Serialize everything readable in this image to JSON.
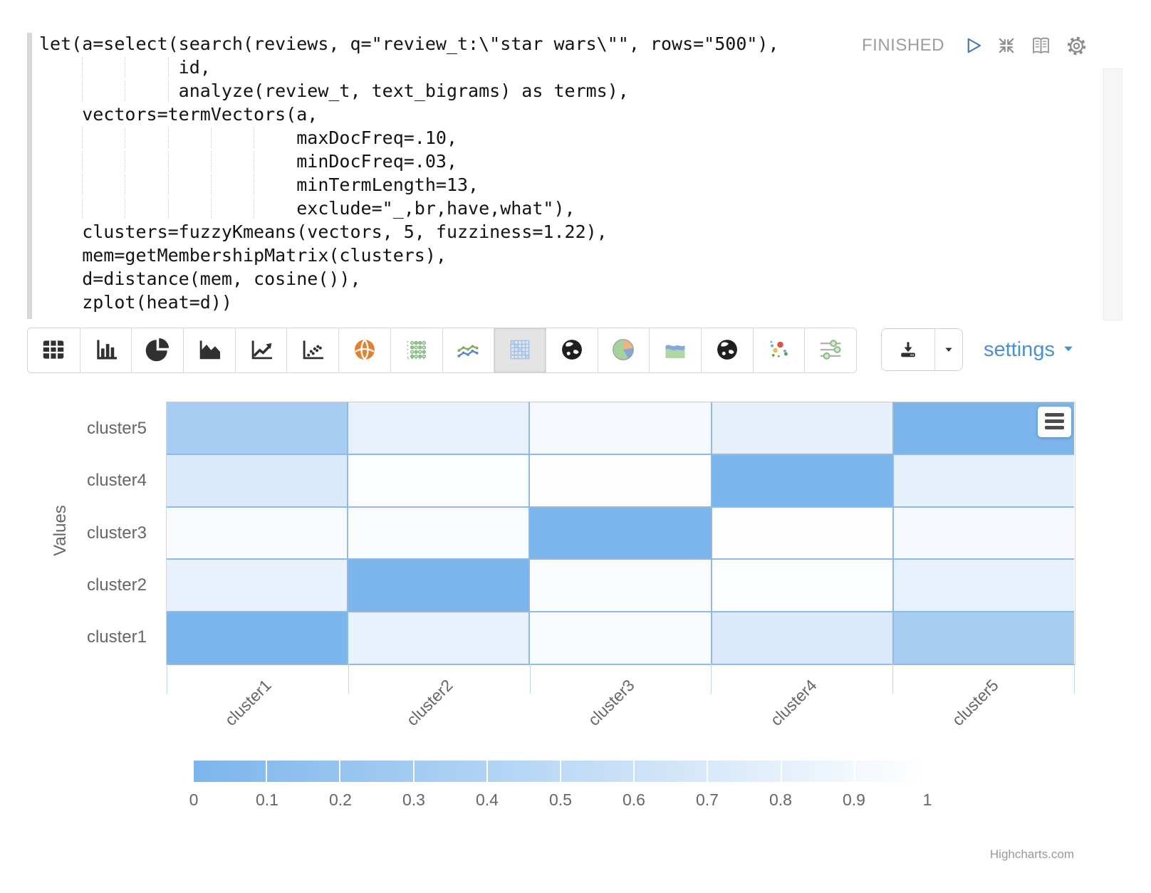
{
  "paragraph": {
    "status_label": "FINISHED",
    "controls": [
      {
        "name": "run-icon"
      },
      {
        "name": "collapse-icon"
      },
      {
        "name": "book-icon"
      },
      {
        "name": "gear-icon"
      }
    ],
    "code_lines": [
      "let(a=select(search(reviews, q=\"review_t:\\\"star wars\\\"\", rows=\"500\"),",
      "             id,",
      "             analyze(review_t, text_bigrams) as terms),",
      "    vectors=termVectors(a,",
      "                        maxDocFreq=.10,",
      "                        minDocFreq=.03,",
      "                        minTermLength=13,",
      "                        exclude=\"_,br,have,what\"),",
      "    clusters=fuzzyKmeans(vectors, 5, fuzziness=1.22),",
      "    mem=getMembershipMatrix(clusters),",
      "    d=distance(mem, cosine()),",
      "    zplot(heat=d))"
    ]
  },
  "toolbar": {
    "buttons": [
      {
        "name": "table-icon"
      },
      {
        "name": "bar-chart-icon"
      },
      {
        "name": "pie-chart-icon"
      },
      {
        "name": "area-chart-icon"
      },
      {
        "name": "line-chart-icon"
      },
      {
        "name": "scatter-chart-icon"
      },
      {
        "name": "globe-orange-icon"
      },
      {
        "name": "dot-matrix-icon"
      },
      {
        "name": "multi-line-chart-icon"
      },
      {
        "name": "heatmap-icon",
        "selected": true
      },
      {
        "name": "globe-dark-icon"
      },
      {
        "name": "pie-color-icon"
      },
      {
        "name": "area-color-icon"
      },
      {
        "name": "globe-dark-icon"
      },
      {
        "name": "scatter-color-icon"
      },
      {
        "name": "parallel-sliders-icon"
      }
    ],
    "download_icon": "download-icon",
    "download_caret_icon": "caret-down-icon",
    "settings_label": "settings"
  },
  "chart_data": {
    "type": "heatmap",
    "x_categories": [
      "cluster1",
      "cluster2",
      "cluster3",
      "cluster4",
      "cluster5"
    ],
    "y_categories_top_to_bottom": [
      "cluster5",
      "cluster4",
      "cluster3",
      "cluster2",
      "cluster1"
    ],
    "ylabel": "Values",
    "values_rows_top_to_bottom": [
      [
        0.33,
        0.81,
        0.92,
        0.8,
        0.0
      ],
      [
        0.72,
        0.97,
        0.99,
        0.0,
        0.8
      ],
      [
        0.94,
        0.96,
        0.0,
        0.99,
        0.92
      ],
      [
        0.82,
        0.0,
        0.96,
        0.97,
        0.81
      ],
      [
        0.0,
        0.82,
        0.94,
        0.72,
        0.33
      ]
    ],
    "color_for_min": "#7cb5ec",
    "color_for_max": "#ffffff",
    "legend_range": [
      0,
      1
    ],
    "legend_ticks": [
      "0",
      "0.1",
      "0.2",
      "0.3",
      "0.4",
      "0.5",
      "0.6",
      "0.7",
      "0.8",
      "0.9",
      "1"
    ],
    "credit": "Highcharts.com"
  }
}
